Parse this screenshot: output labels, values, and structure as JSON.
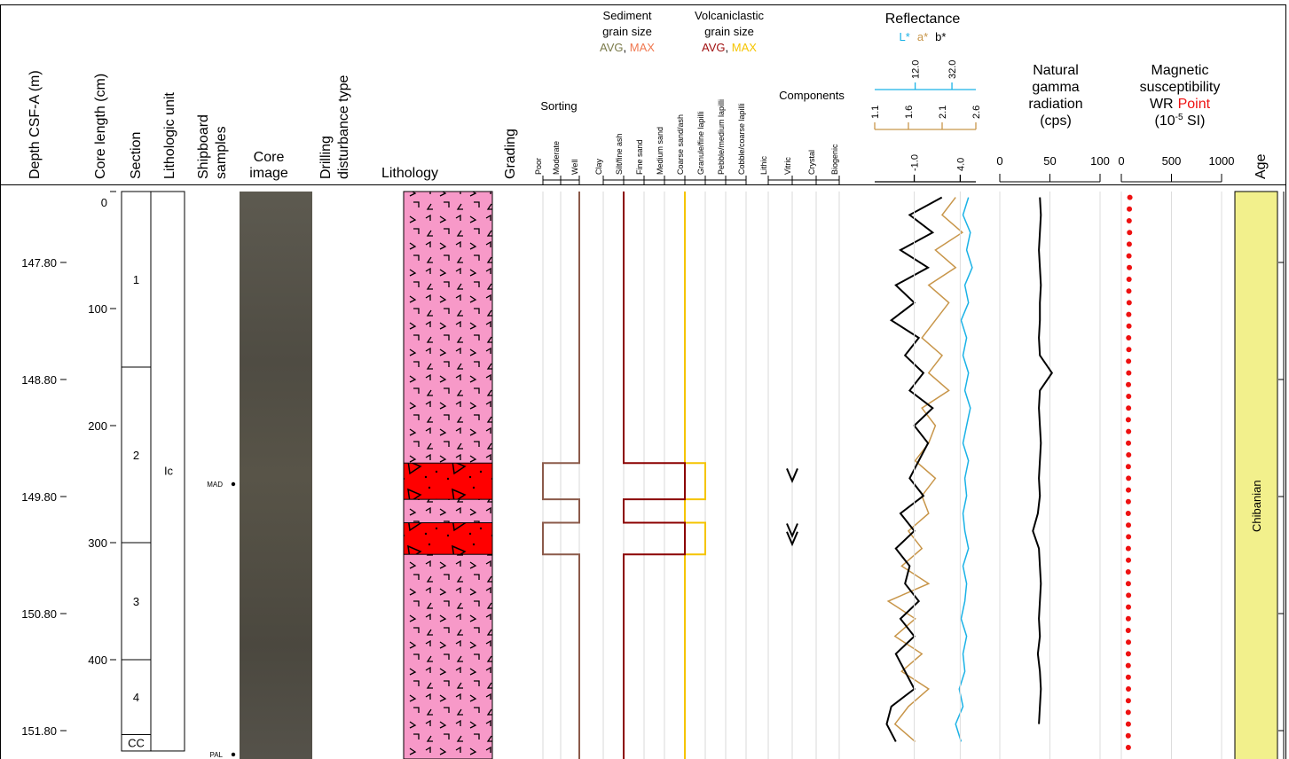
{
  "header": {
    "depth_m": "Depth CSF-A (m)",
    "core_length": "Core length (cm)",
    "section": "Section",
    "lithologic_unit": "Lithologic unit",
    "shipboard_samples": [
      "Shipboard",
      "samples"
    ],
    "core_image": [
      "Core",
      "image"
    ],
    "drilling_disturbance": [
      "Drilling",
      "disturbance type"
    ],
    "lithology": "Lithology",
    "grading": "Grading",
    "sorting": "Sorting",
    "sorting_classes": [
      "Poor",
      "Moderate",
      "Well"
    ],
    "sediment_grain_size": [
      "Sediment",
      "grain size"
    ],
    "sediment_legend": [
      "AVG",
      ", ",
      "MAX"
    ],
    "volcaniclastic_grain_size": [
      "Volcaniclastic",
      "grain size"
    ],
    "volcaniclastic_legend": [
      "AVG",
      ", ",
      "MAX"
    ],
    "grain_classes": [
      "Clay",
      "Silt/fine ash",
      "Fine sand",
      "Medium sand",
      "Coarse sand/ash",
      "Granule/fine lapilli",
      "Pebble/medium lapilli",
      "Cobble/coarse lapilli"
    ],
    "components": "Components",
    "component_classes": [
      "Lithic",
      "Vitric",
      "Crystal",
      "Biogenic"
    ],
    "reflectance": "Reflectance",
    "reflectance_legend": [
      "L*",
      "a*",
      "b*"
    ],
    "gamma": [
      "Natural",
      "gamma",
      "radiation",
      "(cps)"
    ],
    "magsus": [
      "Magnetic",
      "susceptibility"
    ],
    "magsus_legend": [
      "WR",
      "Point"
    ],
    "magsus_unit": [
      "(10",
      "-5",
      " SI)"
    ],
    "age": "Age"
  },
  "depth": {
    "cm_ticks": [
      0,
      100,
      200,
      300,
      400
    ],
    "m_ticks": [
      {
        "value": 147.8,
        "label": "147.80"
      },
      {
        "value": 148.8,
        "label": "148.80"
      },
      {
        "value": 149.8,
        "label": "149.80"
      },
      {
        "value": 150.8,
        "label": "150.80"
      },
      {
        "value": 151.8,
        "label": "151.80"
      }
    ]
  },
  "sections": [
    {
      "label": "1",
      "top": 0,
      "bottom": 150
    },
    {
      "label": "2",
      "top": 150,
      "bottom": 300
    },
    {
      "label": "3",
      "top": 300,
      "bottom": 400
    },
    {
      "label": "4",
      "top": 400,
      "bottom": 464
    },
    {
      "label": "CC",
      "top": 464,
      "bottom": 478
    }
  ],
  "lithologic_unit": {
    "label": "Ic",
    "top": 0,
    "bottom": 478
  },
  "samples": [
    {
      "label": "MAD",
      "cm": 250
    },
    {
      "label": "PAL",
      "cm": 481
    }
  ],
  "background_classes": {
    "sorting": 2,
    "sediment_avg": 1,
    "volcaniclastic_max": 4
  },
  "coarse_beds": [
    {
      "top": 232,
      "bottom": 263,
      "sorting": 0,
      "sediment_avg": 4,
      "volcaniclastic_max": 5
    },
    {
      "top": 283,
      "bottom": 310,
      "sorting": 0,
      "sediment_avg": 4,
      "volcaniclastic_max": 5
    }
  ],
  "vitric_marks": {
    "component": 1,
    "cm": [
      242,
      289,
      296
    ]
  },
  "reflectance": {
    "depth_cm": [
      5,
      20,
      35,
      50,
      65,
      80,
      95,
      110,
      125,
      140,
      155,
      170,
      185,
      200,
      215,
      230,
      245,
      260,
      275,
      290,
      305,
      320,
      335,
      350,
      365,
      380,
      395,
      410,
      425,
      440,
      455,
      470
    ],
    "L_lim": [
      -10,
      45
    ],
    "L_ticks": [
      {
        "value": 12,
        "label": "12.0"
      },
      {
        "value": 32,
        "label": "32.0"
      }
    ],
    "L_color": "#1ab2e6",
    "L": [
      41,
      38,
      42,
      40,
      43,
      39,
      41,
      37,
      40,
      38,
      41,
      39,
      42,
      40,
      38,
      41,
      39,
      40,
      38,
      39,
      41,
      38,
      40,
      39,
      37,
      40,
      38,
      39,
      36,
      38,
      34,
      37
    ],
    "a_lim": [
      1.1,
      2.6
    ],
    "a_ticks": [
      {
        "value": 1.1,
        "label": "1.1"
      },
      {
        "value": 1.6,
        "label": "1.6"
      },
      {
        "value": 2.1,
        "label": "2.1"
      },
      {
        "value": 2.6,
        "label": "2.6"
      }
    ],
    "a_color": "#c8964a",
    "a": [
      2.3,
      2.1,
      2.4,
      2.0,
      2.3,
      1.9,
      2.2,
      2.0,
      1.8,
      2.1,
      1.9,
      2.2,
      1.8,
      2.0,
      1.9,
      1.7,
      2.0,
      1.8,
      1.9,
      1.6,
      1.8,
      1.5,
      1.9,
      1.3,
      1.7,
      1.4,
      1.8,
      1.5,
      1.9,
      1.6,
      1.4,
      1.7
    ],
    "b_lim": [
      -5.3,
      5.7
    ],
    "b_ticks": [
      {
        "value": -1,
        "label": "-1.0"
      },
      {
        "value": 4,
        "label": "4.0"
      }
    ],
    "b_color": "#000000",
    "b": [
      2.0,
      -1.5,
      1.0,
      -2.5,
      0.5,
      -3.0,
      -1.0,
      -3.5,
      -0.5,
      -2.0,
      0.0,
      -1.5,
      1.0,
      -1.0,
      0.5,
      -0.5,
      -1.5,
      0.0,
      -2.5,
      -1.0,
      -3.0,
      -1.5,
      -2.0,
      -0.5,
      -2.5,
      -1.0,
      -3.0,
      -2.0,
      -1.0,
      -3.5,
      -4.0,
      -3.0
    ]
  },
  "gamma": {
    "xlim": [
      0,
      100
    ],
    "xticks": [
      0,
      50,
      100
    ],
    "color": "#000000",
    "depth_cm": [
      5,
      20,
      35,
      50,
      65,
      80,
      95,
      110,
      125,
      140,
      155,
      170,
      185,
      200,
      215,
      230,
      245,
      260,
      275,
      290,
      305,
      320,
      335,
      350,
      365,
      380,
      395,
      410,
      425,
      440,
      455
    ],
    "values": [
      40,
      41,
      40,
      39,
      40,
      41,
      40,
      40,
      39,
      40,
      52,
      40,
      39,
      40,
      41,
      40,
      39,
      40,
      38,
      33,
      39,
      40,
      41,
      40,
      39,
      40,
      38,
      40,
      41,
      40,
      39
    ]
  },
  "magsus": {
    "xlim": [
      0,
      1000
    ],
    "xticks": [
      0,
      500,
      1000
    ],
    "color": "#ee1111",
    "depth_cm": [
      5,
      15,
      25,
      35,
      45,
      55,
      65,
      75,
      85,
      95,
      105,
      115,
      125,
      135,
      145,
      155,
      165,
      175,
      185,
      195,
      205,
      215,
      225,
      235,
      245,
      255,
      265,
      275,
      285,
      295,
      305,
      315,
      325,
      335,
      345,
      355,
      365,
      375,
      385,
      395,
      405,
      415,
      425,
      435,
      445,
      455,
      465,
      475
    ],
    "values": [
      85,
      80,
      78,
      82,
      79,
      76,
      80,
      77,
      75,
      78,
      74,
      76,
      73,
      75,
      72,
      74,
      71,
      73,
      72,
      70,
      72,
      71,
      73,
      70,
      72,
      71,
      70,
      69,
      71,
      72,
      70,
      71,
      69,
      70,
      72,
      71,
      70,
      69,
      71,
      70,
      69,
      70,
      71,
      70,
      69,
      70,
      69,
      70
    ]
  },
  "age": "Chibanian"
}
